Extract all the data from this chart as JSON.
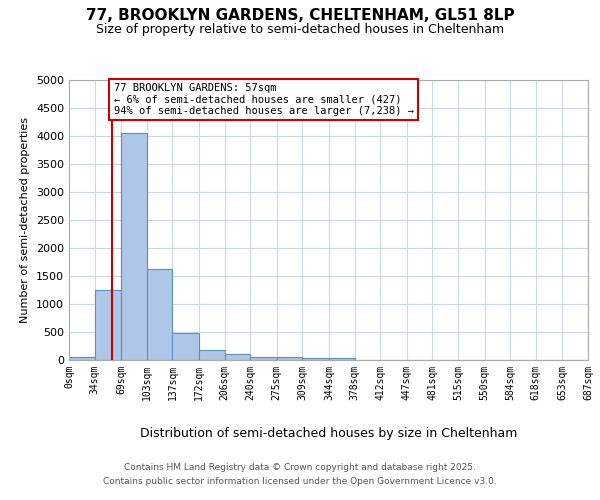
{
  "title1": "77, BROOKLYN GARDENS, CHELTENHAM, GL51 8LP",
  "title2": "Size of property relative to semi-detached houses in Cheltenham",
  "xlabel": "Distribution of semi-detached houses by size in Cheltenham",
  "ylabel": "Number of semi-detached properties",
  "bin_labels": [
    "0sqm",
    "34sqm",
    "69sqm",
    "103sqm",
    "137sqm",
    "172sqm",
    "206sqm",
    "240sqm",
    "275sqm",
    "309sqm",
    "344sqm",
    "378sqm",
    "412sqm",
    "447sqm",
    "481sqm",
    "515sqm",
    "550sqm",
    "584sqm",
    "618sqm",
    "653sqm",
    "687sqm"
  ],
  "bin_edges": [
    0,
    34,
    69,
    103,
    137,
    172,
    206,
    240,
    275,
    309,
    344,
    378,
    412,
    447,
    481,
    515,
    550,
    584,
    618,
    653,
    687
  ],
  "bar_heights": [
    50,
    1250,
    4050,
    1625,
    475,
    175,
    110,
    60,
    55,
    35,
    30,
    0,
    0,
    0,
    0,
    0,
    0,
    0,
    0,
    0
  ],
  "bar_color": "#aec6e8",
  "bar_edge_color": "#5a8fc0",
  "property_size": 57,
  "red_line_color": "#cc0000",
  "annotation_line1": "77 BROOKLYN GARDENS: 57sqm",
  "annotation_line2": "← 6% of semi-detached houses are smaller (427)",
  "annotation_line3": "94% of semi-detached houses are larger (7,238) →",
  "annotation_box_color": "#cc0000",
  "ylim": [
    0,
    5000
  ],
  "yticks": [
    0,
    500,
    1000,
    1500,
    2000,
    2500,
    3000,
    3500,
    4000,
    4500,
    5000
  ],
  "footer1": "Contains HM Land Registry data © Crown copyright and database right 2025.",
  "footer2": "Contains public sector information licensed under the Open Government Licence v3.0.",
  "bg_color": "#ffffff",
  "grid_color": "#c8d8e8"
}
